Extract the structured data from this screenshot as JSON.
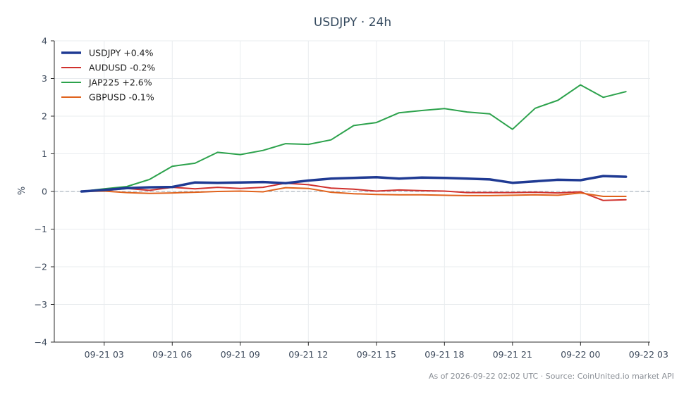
{
  "chart_data": {
    "type": "line",
    "title": "USDJPY · 24h",
    "ylabel": "%",
    "xlabel": "",
    "ylim": [
      -4,
      4
    ],
    "yticks": [
      4,
      3,
      2,
      1,
      0,
      -1,
      -2,
      -3,
      -4
    ],
    "ytick_labels": [
      "4",
      "3",
      "2",
      "1",
      "0",
      "−1",
      "−2",
      "−3",
      "−4"
    ],
    "xlim": [
      "2026-09-21 00:48",
      "2026-09-22 03:04"
    ],
    "xticks": [
      "2026-09-21 03:00",
      "2026-09-21 06:00",
      "2026-09-21 09:00",
      "2026-09-21 12:00",
      "2026-09-21 15:00",
      "2026-09-21 18:00",
      "2026-09-21 21:00",
      "2026-09-22 00:00",
      "2026-09-22 03:00"
    ],
    "xtick_labels": [
      "09-21 03",
      "09-21 06",
      "09-21 09",
      "09-21 12",
      "09-21 15",
      "09-21 18",
      "09-21 21",
      "09-22 00",
      "09-22 03"
    ],
    "x": [
      "2026-09-21 02:00",
      "2026-09-21 03:00",
      "2026-09-21 04:00",
      "2026-09-21 05:00",
      "2026-09-21 06:00",
      "2026-09-21 07:00",
      "2026-09-21 08:00",
      "2026-09-21 09:00",
      "2026-09-21 10:00",
      "2026-09-21 11:00",
      "2026-09-21 12:00",
      "2026-09-21 13:00",
      "2026-09-21 14:00",
      "2026-09-21 15:00",
      "2026-09-21 16:00",
      "2026-09-21 17:00",
      "2026-09-21 18:00",
      "2026-09-21 19:00",
      "2026-09-21 20:00",
      "2026-09-21 21:00",
      "2026-09-21 22:00",
      "2026-09-21 23:00",
      "2026-09-22 00:00",
      "2026-09-22 01:00",
      "2026-09-22 02:00"
    ],
    "series": [
      {
        "name": "USDJPY +0.4%",
        "color": "#1f3a93",
        "width": 3.5,
        "values": [
          0.0,
          0.04,
          0.09,
          0.11,
          0.12,
          0.24,
          0.23,
          0.24,
          0.25,
          0.22,
          0.29,
          0.34,
          0.36,
          0.38,
          0.34,
          0.37,
          0.36,
          0.34,
          0.32,
          0.23,
          0.27,
          0.31,
          0.3,
          0.41,
          0.39
        ]
      },
      {
        "name": "AUDUSD -0.2%",
        "color": "#d0312d",
        "width": 2,
        "values": [
          0.0,
          0.02,
          0.08,
          0.03,
          0.11,
          0.07,
          0.11,
          0.08,
          0.11,
          0.22,
          0.18,
          0.09,
          0.06,
          0.01,
          0.04,
          0.02,
          0.01,
          -0.03,
          -0.03,
          -0.03,
          -0.02,
          -0.04,
          -0.01,
          -0.24,
          -0.22
        ]
      },
      {
        "name": "JAP225 +2.6%",
        "color": "#2ca24c",
        "width": 2,
        "values": [
          0.0,
          0.07,
          0.13,
          0.32,
          0.67,
          0.75,
          1.04,
          0.98,
          1.09,
          1.27,
          1.25,
          1.37,
          1.75,
          1.83,
          2.09,
          2.15,
          2.2,
          2.11,
          2.06,
          1.65,
          2.21,
          2.42,
          2.83,
          2.5,
          2.65
        ]
      },
      {
        "name": "GBPUSD -0.1%",
        "color": "#e0621c",
        "width": 2,
        "values": [
          0.0,
          0.01,
          -0.03,
          -0.05,
          -0.04,
          -0.02,
          0.0,
          0.01,
          -0.01,
          0.1,
          0.08,
          -0.02,
          -0.06,
          -0.08,
          -0.09,
          -0.09,
          -0.1,
          -0.11,
          -0.11,
          -0.1,
          -0.09,
          -0.1,
          -0.04,
          -0.13,
          -0.13
        ]
      }
    ],
    "zero_line": true,
    "grid": true,
    "legend": "top-left",
    "footnote": "As of 2026-09-22 02:02 UTC · Source: CoinUnited.io market API"
  }
}
